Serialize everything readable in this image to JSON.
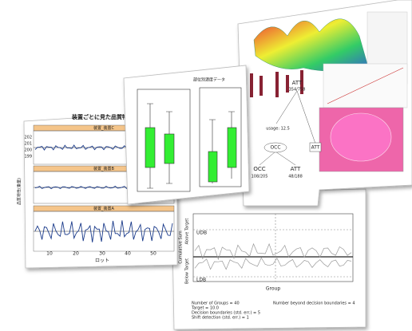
{
  "series_chart": {
    "title": "装置ごとに見た品質特",
    "panels": [
      "装置_装置C",
      "装置_装置B",
      "装置_装置A"
    ],
    "ylabel": "品質特性(重量)",
    "xlabel": "ロット",
    "xticks": [
      "10",
      "20",
      "30",
      "40",
      "50"
    ],
    "yticks": [
      "202",
      "201",
      "200",
      "199"
    ]
  },
  "boxplot": {
    "title": "部位別濃度データ"
  },
  "tree": {
    "root": {
      "label": "ATT",
      "counts": "354/758"
    },
    "split": "usage: 12.5",
    "mid": "OCC",
    "left": {
      "label": "OCC",
      "counts": "108/205"
    },
    "right": {
      "label": "ATT",
      "counts": "48/188"
    },
    "side": "ATT"
  },
  "cusum": {
    "upper": "UDB",
    "lower": "LDB",
    "xlabel": "Group",
    "ylabel": "Cumulative Sum",
    "above": "Above Target",
    "below": "Below Target",
    "stats": [
      "Number of Groups = 40",
      "Target = 10.0",
      "Decision boundaries (std. err.) = 5",
      "Shift detection (std. err.) = 1"
    ],
    "beyond": "Number beyond decision boundaries = 4"
  }
}
